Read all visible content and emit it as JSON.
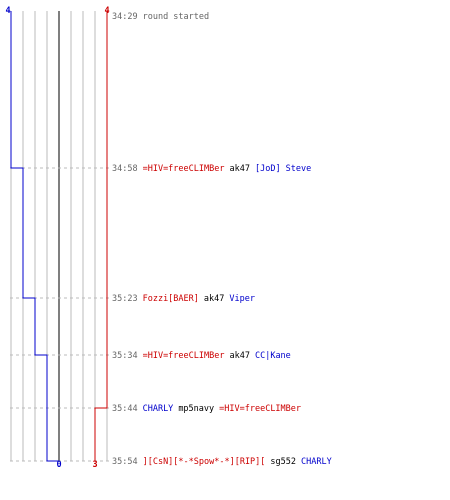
{
  "chart_data": {
    "type": "line",
    "grid": true,
    "team_colors": {
      "blue": "#0000cc",
      "red": "#cc0000",
      "time": "#666666",
      "weapon": "#000000",
      "grid": "#bbbbbb",
      "zero_line": "#555555"
    },
    "start_labels": {
      "blue": "4",
      "red": "4"
    },
    "end_labels": {
      "blue": "0",
      "red": "3"
    },
    "x_range": [
      -4,
      4
    ],
    "series": [
      {
        "team": "blue",
        "values": [
          4,
          3,
          2,
          1,
          1,
          0
        ]
      },
      {
        "team": "red",
        "values": [
          4,
          4,
          4,
          4,
          3,
          3
        ]
      }
    ],
    "events": [
      {
        "time": "34:29",
        "parts": [
          {
            "text": "round started",
            "color": "time"
          }
        ]
      },
      {
        "time": "34:58",
        "parts": [
          {
            "text": "=HIV=freeCLIMBer",
            "color": "red"
          },
          {
            "text": "ak47",
            "color": "weapon"
          },
          {
            "text": "[JoD] Steve",
            "color": "blue"
          }
        ]
      },
      {
        "time": "35:23",
        "parts": [
          {
            "text": "Fozzi[BAER]",
            "color": "red"
          },
          {
            "text": "ak47",
            "color": "weapon"
          },
          {
            "text": "Viper",
            "color": "blue"
          }
        ]
      },
      {
        "time": "35:34",
        "parts": [
          {
            "text": "=HIV=freeCLIMBer",
            "color": "red"
          },
          {
            "text": "ak47",
            "color": "weapon"
          },
          {
            "text": "CC|Kane",
            "color": "blue"
          }
        ]
      },
      {
        "time": "35:44",
        "parts": [
          {
            "text": "CHARLY",
            "color": "blue"
          },
          {
            "text": "mp5navy",
            "color": "weapon"
          },
          {
            "text": "=HIV=freeCLIMBer",
            "color": "red"
          }
        ]
      },
      {
        "time": "35:54",
        "parts": [
          {
            "text": "][CsN][*-*Spow*-*][RIP][",
            "color": "red"
          },
          {
            "text": "sg552",
            "color": "weapon"
          },
          {
            "text": "CHARLY",
            "color": "blue"
          }
        ]
      }
    ]
  }
}
